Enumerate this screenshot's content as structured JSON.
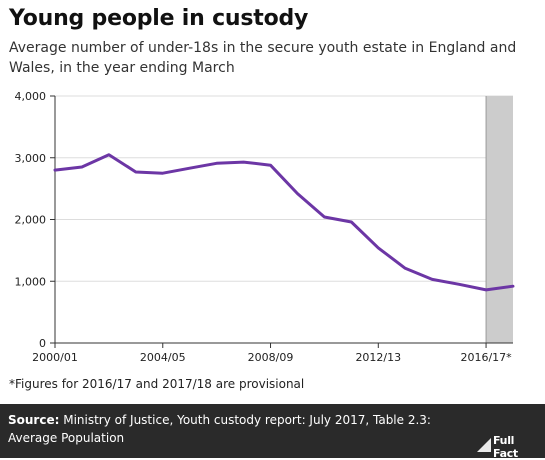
{
  "header": {
    "title": "Young people in custody",
    "subtitle": "Average number of under-18s in the secure youth estate in England and Wales, in the year ending March"
  },
  "chart_data": {
    "type": "line",
    "title": "Young people in custody",
    "subtitle": "Average number of under-18s in the secure youth estate in England and Wales, in the year ending March",
    "xlabel": "",
    "ylabel": "",
    "x": [
      "2000/01",
      "2001/02",
      "2002/03",
      "2003/04",
      "2004/05",
      "2005/06",
      "2006/07",
      "2007/08",
      "2008/09",
      "2009/10",
      "2010/11",
      "2011/12",
      "2012/13",
      "2013/14",
      "2014/15",
      "2015/16",
      "2016/17",
      "2017/18"
    ],
    "x_tick_labels": [
      "2000/01",
      "2004/05",
      "2008/09",
      "2012/13",
      "2016/17*"
    ],
    "y_tick_labels": [
      "0",
      "1,000",
      "2,000",
      "3,000",
      "4,000"
    ],
    "y_ticks": [
      0,
      1000,
      2000,
      3000,
      4000
    ],
    "ylim": [
      0,
      4000
    ],
    "series": [
      {
        "values": [
          2800,
          2850,
          3050,
          2770,
          2750,
          2830,
          2910,
          2930,
          2880,
          2420,
          2040,
          1960,
          1540,
          1210,
          1030,
          950,
          860,
          920
        ]
      }
    ],
    "shaded_region": {
      "from": "2016/17",
      "to": "2017/18",
      "meaning": "provisional"
    },
    "colors": {
      "line": "#6c36a5",
      "shade": "#cccccc",
      "axis": "#333333",
      "grid": "#dddddd"
    },
    "grid": true
  },
  "footnote": "*Figures for 2016/17 and 2017/18 are provisional",
  "source": {
    "label": "Source:",
    "text": " Ministry of Justice, Youth custody report: July 2017, Table 2.3: Average Population"
  },
  "logo": {
    "text": "Full Fact",
    "icon": "full-fact-logo-icon"
  }
}
